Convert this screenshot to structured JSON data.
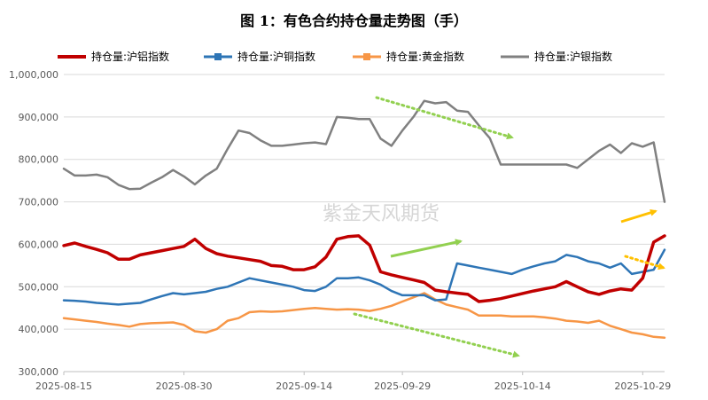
{
  "chart_data": {
    "type": "line",
    "title": "图 1：有色合约持仓量走势图（手）",
    "watermark": "紫金天风期货",
    "ylim": [
      300000,
      1000000
    ],
    "yticks": [
      300000,
      400000,
      500000,
      600000,
      700000,
      800000,
      900000,
      1000000
    ],
    "ytick_labels": [
      "300,000",
      "400,000",
      "500,000",
      "600,000",
      "700,000",
      "800,000",
      "900,000",
      "1,000,000"
    ],
    "x_count": 56,
    "x_tick_labels": [
      {
        "index": 0,
        "label": "2025-08-15"
      },
      {
        "index": 11,
        "label": "2025-08-30"
      },
      {
        "index": 22,
        "label": "2025-09-14"
      },
      {
        "index": 31,
        "label": "2025-09-29"
      },
      {
        "index": 42,
        "label": "2025-10-14"
      },
      {
        "index": 53,
        "label": "2025-10-29"
      }
    ],
    "series": [
      {
        "name": "持仓量:沪铝指数",
        "color": "#c00000",
        "values": [
          597000,
          603000,
          595000,
          588000,
          580000,
          565000,
          565000,
          575000,
          580000,
          585000,
          590000,
          595000,
          612000,
          590000,
          578000,
          572000,
          568000,
          564000,
          560000,
          550000,
          548000,
          540000,
          540000,
          547000,
          570000,
          612000,
          618000,
          620000,
          598000,
          535000,
          528000,
          522000,
          516000,
          510000,
          492000,
          488000,
          485000,
          482000,
          465000,
          468000,
          472000,
          478000,
          484000,
          490000,
          495000,
          500000,
          512000,
          500000,
          488000,
          482000,
          490000,
          495000,
          492000,
          520000,
          605000,
          620000
        ]
      },
      {
        "name": "持仓量:沪铜指数",
        "color": "#2e75b6",
        "values": [
          468000,
          467000,
          465000,
          462000,
          460000,
          458000,
          460000,
          462000,
          470000,
          478000,
          485000,
          482000,
          485000,
          488000,
          495000,
          500000,
          510000,
          520000,
          515000,
          510000,
          505000,
          500000,
          492000,
          490000,
          500000,
          520000,
          520000,
          522000,
          515000,
          505000,
          490000,
          480000,
          480000,
          480000,
          468000,
          470000,
          555000,
          550000,
          545000,
          540000,
          535000,
          530000,
          540000,
          548000,
          555000,
          560000,
          575000,
          570000,
          560000,
          555000,
          545000,
          555000,
          530000,
          535000,
          540000,
          587000
        ]
      },
      {
        "name": "持仓量:黄金指数",
        "color": "#f79646",
        "values": [
          426000,
          423000,
          420000,
          417000,
          413000,
          410000,
          406000,
          412000,
          414000,
          415000,
          416000,
          410000,
          395000,
          392000,
          400000,
          420000,
          426000,
          440000,
          442000,
          441000,
          442000,
          445000,
          448000,
          450000,
          448000,
          446000,
          447000,
          446000,
          443000,
          448000,
          455000,
          465000,
          475000,
          485000,
          470000,
          458000,
          452000,
          446000,
          432000,
          432000,
          432000,
          430000,
          430000,
          430000,
          428000,
          425000,
          420000,
          418000,
          415000,
          420000,
          408000,
          400000,
          392000,
          388000,
          382000,
          380000
        ]
      },
      {
        "name": "持仓量:沪银指数",
        "color": "#808080",
        "values": [
          778000,
          762000,
          762000,
          764000,
          758000,
          740000,
          730000,
          731000,
          745000,
          758000,
          775000,
          760000,
          741000,
          762000,
          778000,
          825000,
          868000,
          862000,
          845000,
          832000,
          832000,
          835000,
          838000,
          840000,
          836000,
          900000,
          898000,
          895000,
          895000,
          849000,
          832000,
          868000,
          900000,
          938000,
          932000,
          935000,
          915000,
          912000,
          880000,
          850000,
          788000,
          788000,
          788000,
          788000,
          788000,
          788000,
          788000,
          780000,
          800000,
          820000,
          835000,
          815000,
          838000,
          830000,
          840000,
          700000
        ]
      }
    ],
    "annotations": [
      {
        "type": "arrow",
        "style": "dotted",
        "color": "#92d050",
        "description": "沪银持仓下行"
      },
      {
        "type": "arrow",
        "style": "solid",
        "color": "#92d050",
        "description": "沪铜持仓上行"
      },
      {
        "type": "arrow",
        "style": "dotted",
        "color": "#92d050",
        "description": "黄金持仓下行"
      },
      {
        "type": "arrow",
        "style": "solid",
        "color": "#ffc000",
        "description": "沪铝持仓上行"
      },
      {
        "type": "arrow",
        "style": "dotted",
        "color": "#ffc000",
        "description": "黄金持仓下行"
      }
    ]
  }
}
